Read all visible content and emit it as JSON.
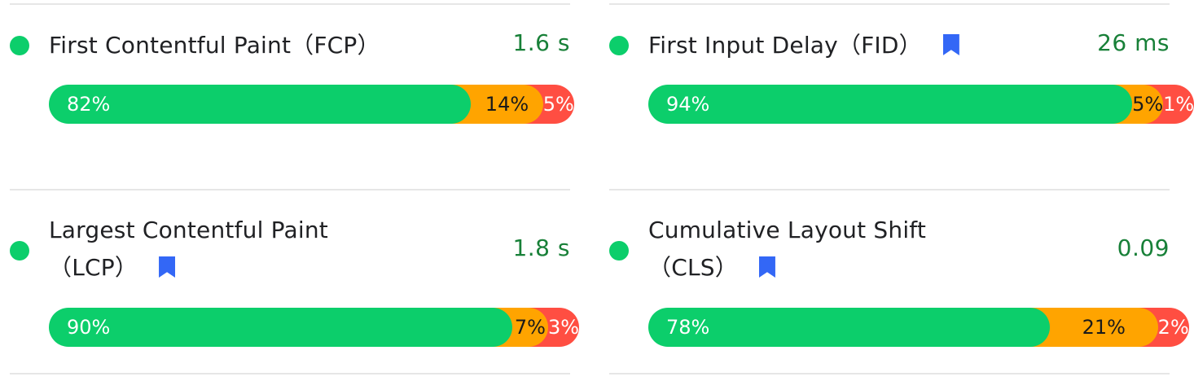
{
  "metrics": [
    {
      "title_line1": "First Contentful Paint（FCP）",
      "title_line2": "",
      "value": "1.6 s",
      "status": "good",
      "bookmark": false,
      "distribution": {
        "good": "82%",
        "average": "14%",
        "poor": "5%"
      },
      "fractions": {
        "good": 0.82,
        "average": 0.14,
        "poor": 0.05
      }
    },
    {
      "title_line1": "First Input Delay（FID）",
      "title_line2": "",
      "value": "26 ms",
      "status": "good",
      "bookmark": true,
      "distribution": {
        "good": "94%",
        "average": "5%",
        "poor": "1%"
      },
      "fractions": {
        "good": 0.94,
        "average": 0.05,
        "poor": 0.01
      }
    },
    {
      "title_line1": "Largest Contentful Paint",
      "title_line2": "（LCP）",
      "value": "1.8 s",
      "status": "good",
      "bookmark": true,
      "distribution": {
        "good": "90%",
        "average": "7%",
        "poor": "3%"
      },
      "fractions": {
        "good": 0.9,
        "average": 0.07,
        "poor": 0.03
      }
    },
    {
      "title_line1": "Cumulative Layout Shift",
      "title_line2": "（CLS）",
      "value": "0.09",
      "status": "good",
      "bookmark": true,
      "distribution": {
        "good": "78%",
        "average": "21%",
        "poor": "2%"
      },
      "fractions": {
        "good": 0.78,
        "average": 0.21,
        "poor": 0.02
      }
    }
  ],
  "colors": {
    "good": "#0cce6b",
    "average": "#ffa400",
    "poor": "#ff4e42",
    "value_text": "#188038",
    "bookmark": "#3367f6"
  },
  "icons": {
    "status": "green-circle-icon",
    "bookmark": "bookmark-icon"
  }
}
